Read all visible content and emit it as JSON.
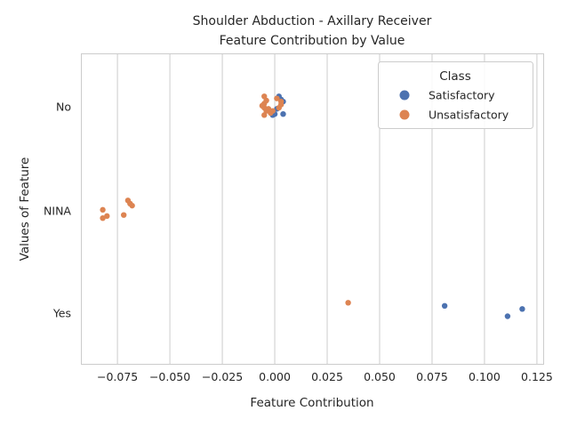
{
  "chart_data": {
    "type": "scatter",
    "title_lines": [
      "Shoulder Abduction - Axillary Receiver",
      "Feature Contribution by Value"
    ],
    "xlabel": "Feature Contribution",
    "ylabel": "Values of Feature",
    "xlim": [
      -0.092,
      0.128
    ],
    "x_ticks": [
      -0.075,
      -0.05,
      -0.025,
      0.0,
      0.025,
      0.05,
      0.075,
      0.1,
      0.125
    ],
    "x_tick_labels": [
      "−0.075",
      "−0.050",
      "−0.025",
      "0.000",
      "0.025",
      "0.050",
      "0.075",
      "0.100",
      "0.125"
    ],
    "categories": [
      "No",
      "NINA",
      "Yes"
    ],
    "grid": "vertical",
    "legend": {
      "title": "Class",
      "placement": "top-right"
    },
    "series": [
      {
        "name": "Satisfactory",
        "color": "#4c72b0",
        "points": [
          {
            "category": "No",
            "x": 0.002,
            "jitter": -0.1
          },
          {
            "category": "No",
            "x": 0.003,
            "jitter": -0.07
          },
          {
            "category": "No",
            "x": 0.004,
            "jitter": -0.05
          },
          {
            "category": "No",
            "x": 0.001,
            "jitter": 0.02
          },
          {
            "category": "No",
            "x": -0.002,
            "jitter": 0.05
          },
          {
            "category": "No",
            "x": 0.0,
            "jitter": 0.07
          },
          {
            "category": "No",
            "x": 0.004,
            "jitter": 0.07
          },
          {
            "category": "No",
            "x": -0.001,
            "jitter": 0.08
          },
          {
            "category": "Yes",
            "x": 0.081,
            "jitter": -0.07
          },
          {
            "category": "Yes",
            "x": 0.118,
            "jitter": -0.04
          },
          {
            "category": "Yes",
            "x": 0.111,
            "jitter": 0.03
          }
        ]
      },
      {
        "name": "Unsatisfactory",
        "color": "#dd8452",
        "points": [
          {
            "category": "No",
            "x": -0.005,
            "jitter": -0.1
          },
          {
            "category": "No",
            "x": 0.001,
            "jitter": -0.08
          },
          {
            "category": "No",
            "x": -0.004,
            "jitter": -0.06
          },
          {
            "category": "No",
            "x": 0.003,
            "jitter": -0.05
          },
          {
            "category": "No",
            "x": -0.005,
            "jitter": -0.03
          },
          {
            "category": "No",
            "x": 0.003,
            "jitter": -0.02
          },
          {
            "category": "No",
            "x": -0.006,
            "jitter": -0.01
          },
          {
            "category": "No",
            "x": -0.005,
            "jitter": 0.01
          },
          {
            "category": "No",
            "x": 0.002,
            "jitter": 0.01
          },
          {
            "category": "No",
            "x": -0.003,
            "jitter": 0.02
          },
          {
            "category": "No",
            "x": -0.004,
            "jitter": 0.04
          },
          {
            "category": "No",
            "x": -0.001,
            "jitter": 0.04
          },
          {
            "category": "No",
            "x": -0.002,
            "jitter": 0.06
          },
          {
            "category": "No",
            "x": -0.005,
            "jitter": 0.08
          },
          {
            "category": "NINA",
            "x": -0.07,
            "jitter": -0.1
          },
          {
            "category": "NINA",
            "x": -0.069,
            "jitter": -0.07
          },
          {
            "category": "NINA",
            "x": -0.068,
            "jitter": -0.05
          },
          {
            "category": "NINA",
            "x": -0.082,
            "jitter": -0.01
          },
          {
            "category": "NINA",
            "x": -0.072,
            "jitter": 0.04
          },
          {
            "category": "NINA",
            "x": -0.08,
            "jitter": 0.05
          },
          {
            "category": "NINA",
            "x": -0.082,
            "jitter": 0.07
          },
          {
            "category": "Yes",
            "x": 0.035,
            "jitter": -0.1
          }
        ]
      }
    ]
  }
}
